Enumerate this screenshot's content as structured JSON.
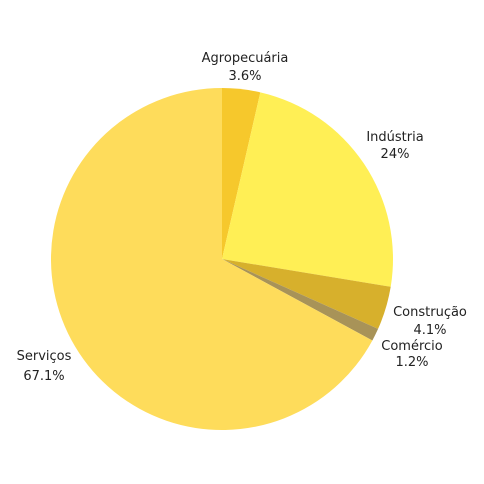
{
  "chart_data": {
    "type": "pie",
    "start_angle_deg": 0,
    "direction": "clockwise",
    "slices": [
      {
        "label": "Agropecuária",
        "value": 3.6,
        "value_label": "3.6%",
        "color": "#F6C82C"
      },
      {
        "label": "Indústria",
        "value": 24,
        "value_label": "24%",
        "color": "#FFEF55"
      },
      {
        "label": "Construção",
        "value": 4.1,
        "value_label": "4.1%",
        "color": "#D7B02C"
      },
      {
        "label": "Comércio",
        "value": 1.2,
        "value_label": "1.2%",
        "color": "#A89358"
      },
      {
        "label": "Serviços",
        "value": 67.1,
        "value_label": "67.1%",
        "color": "#FEDC5B"
      }
    ]
  }
}
